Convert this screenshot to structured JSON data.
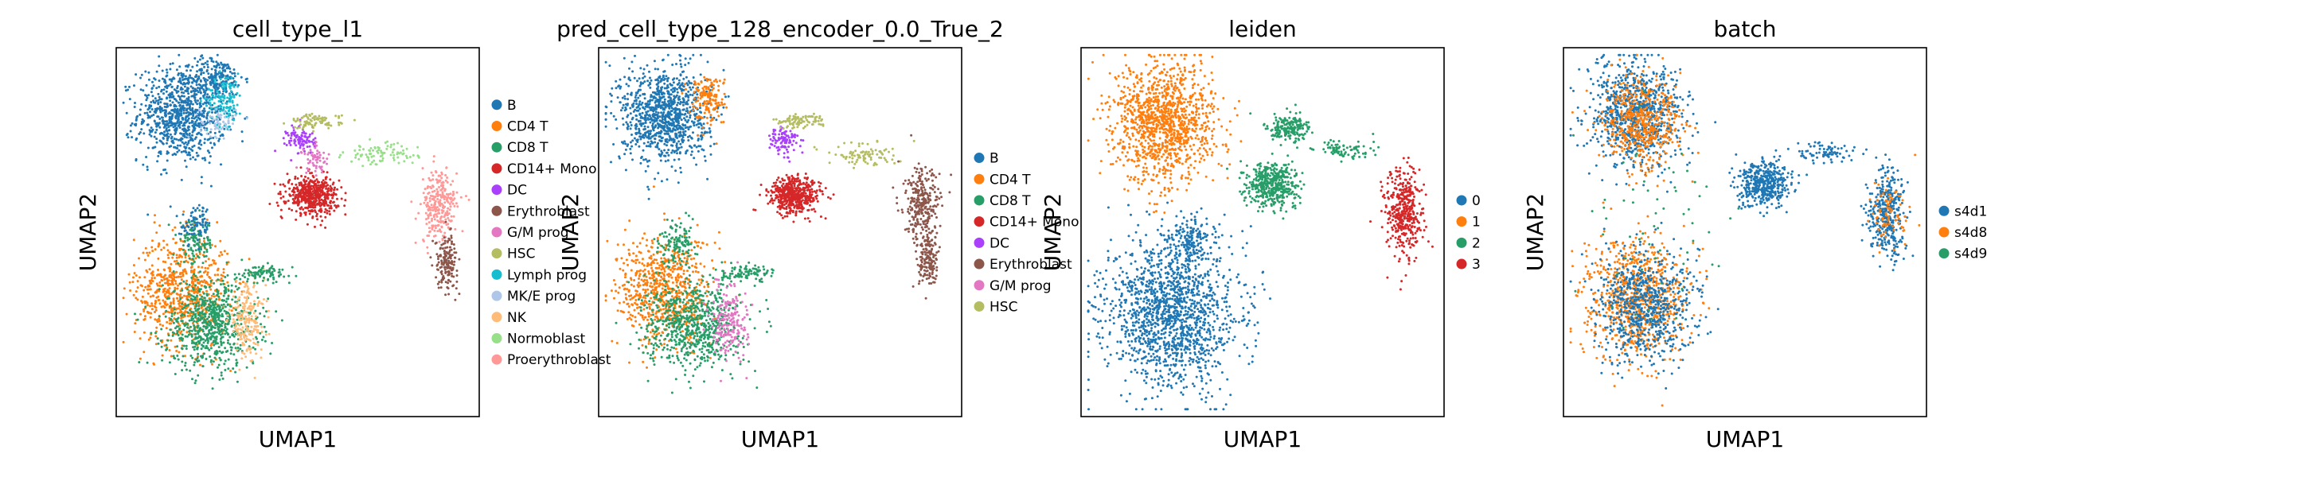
{
  "chart_data": [
    {
      "type": "scatter",
      "title": "cell_type_l1",
      "xlabel": "UMAP1",
      "ylabel": "UMAP2",
      "grid": false,
      "legend_position": "right",
      "series": [
        {
          "name": "B",
          "color": "#1f77b4"
        },
        {
          "name": "CD4 T",
          "color": "#ff7f0e"
        },
        {
          "name": "CD8 T",
          "color": "#279e68"
        },
        {
          "name": "CD14+ Mono",
          "color": "#d62728"
        },
        {
          "name": "DC",
          "color": "#aa40fc"
        },
        {
          "name": "Erythroblast",
          "color": "#8c564b"
        },
        {
          "name": "G/M prog",
          "color": "#e377c2"
        },
        {
          "name": "HSC",
          "color": "#b5bd61"
        },
        {
          "name": "Lymph prog",
          "color": "#17becf"
        },
        {
          "name": "MK/E prog",
          "color": "#aec7e8"
        },
        {
          "name": "NK",
          "color": "#ffbb78"
        },
        {
          "name": "Normoblast",
          "color": "#98df8a"
        },
        {
          "name": "Proerythroblast",
          "color": "#ff9896"
        }
      ],
      "clusters": [
        {
          "series": 0,
          "cx": 0.18,
          "cy": 0.82,
          "rx": 0.12,
          "ry": 0.13,
          "n": 900
        },
        {
          "series": 0,
          "cx": 0.28,
          "cy": 0.92,
          "rx": 0.07,
          "ry": 0.05,
          "n": 180
        },
        {
          "series": 8,
          "cx": 0.3,
          "cy": 0.86,
          "rx": 0.05,
          "ry": 0.07,
          "n": 130
        },
        {
          "series": 9,
          "cx": 0.28,
          "cy": 0.8,
          "rx": 0.05,
          "ry": 0.04,
          "n": 60
        },
        {
          "series": 1,
          "cx": 0.18,
          "cy": 0.34,
          "rx": 0.13,
          "ry": 0.15,
          "n": 700
        },
        {
          "series": 2,
          "cx": 0.26,
          "cy": 0.25,
          "rx": 0.13,
          "ry": 0.12,
          "n": 700
        },
        {
          "series": 10,
          "cx": 0.36,
          "cy": 0.26,
          "rx": 0.05,
          "ry": 0.1,
          "n": 200
        },
        {
          "series": 2,
          "cx": 0.22,
          "cy": 0.47,
          "rx": 0.05,
          "ry": 0.06,
          "n": 120
        },
        {
          "series": 0,
          "cx": 0.22,
          "cy": 0.52,
          "rx": 0.04,
          "ry": 0.05,
          "n": 80
        },
        {
          "series": 3,
          "cx": 0.54,
          "cy": 0.6,
          "rx": 0.07,
          "ry": 0.05,
          "n": 500
        },
        {
          "series": 4,
          "cx": 0.51,
          "cy": 0.75,
          "rx": 0.04,
          "ry": 0.04,
          "n": 100
        },
        {
          "series": 7,
          "cx": 0.55,
          "cy": 0.8,
          "rx": 0.07,
          "ry": 0.02,
          "n": 90
        },
        {
          "series": 6,
          "cx": 0.55,
          "cy": 0.7,
          "rx": 0.04,
          "ry": 0.04,
          "n": 60
        },
        {
          "series": 11,
          "cx": 0.73,
          "cy": 0.71,
          "rx": 0.1,
          "ry": 0.03,
          "n": 90
        },
        {
          "series": 12,
          "cx": 0.89,
          "cy": 0.57,
          "rx": 0.05,
          "ry": 0.1,
          "n": 280
        },
        {
          "series": 5,
          "cx": 0.91,
          "cy": 0.42,
          "rx": 0.03,
          "ry": 0.07,
          "n": 160
        },
        {
          "series": 2,
          "cx": 0.41,
          "cy": 0.39,
          "rx": 0.07,
          "ry": 0.02,
          "n": 90
        }
      ]
    },
    {
      "type": "scatter",
      "title": "pred_cell_type_128_encoder_0.0_True_2",
      "xlabel": "UMAP1",
      "ylabel": "UMAP2",
      "grid": false,
      "legend_position": "right",
      "series": [
        {
          "name": "B",
          "color": "#1f77b4"
        },
        {
          "name": "CD4 T",
          "color": "#ff7f0e"
        },
        {
          "name": "CD8 T",
          "color": "#279e68"
        },
        {
          "name": "CD14+ Mono",
          "color": "#d62728"
        },
        {
          "name": "DC",
          "color": "#aa40fc"
        },
        {
          "name": "Erythroblast",
          "color": "#8c564b"
        },
        {
          "name": "G/M prog",
          "color": "#e377c2"
        },
        {
          "name": "HSC",
          "color": "#b5bd61"
        }
      ],
      "clusters": [
        {
          "series": 0,
          "cx": 0.18,
          "cy": 0.82,
          "rx": 0.12,
          "ry": 0.13,
          "n": 1000
        },
        {
          "series": 1,
          "cx": 0.3,
          "cy": 0.86,
          "rx": 0.05,
          "ry": 0.07,
          "n": 150
        },
        {
          "series": 1,
          "cx": 0.18,
          "cy": 0.34,
          "rx": 0.13,
          "ry": 0.15,
          "n": 700
        },
        {
          "series": 2,
          "cx": 0.26,
          "cy": 0.25,
          "rx": 0.13,
          "ry": 0.12,
          "n": 700
        },
        {
          "series": 6,
          "cx": 0.36,
          "cy": 0.26,
          "rx": 0.05,
          "ry": 0.1,
          "n": 200
        },
        {
          "series": 2,
          "cx": 0.22,
          "cy": 0.47,
          "rx": 0.05,
          "ry": 0.06,
          "n": 120
        },
        {
          "series": 3,
          "cx": 0.54,
          "cy": 0.6,
          "rx": 0.07,
          "ry": 0.05,
          "n": 500
        },
        {
          "series": 4,
          "cx": 0.51,
          "cy": 0.75,
          "rx": 0.04,
          "ry": 0.04,
          "n": 100
        },
        {
          "series": 7,
          "cx": 0.55,
          "cy": 0.8,
          "rx": 0.07,
          "ry": 0.02,
          "n": 90
        },
        {
          "series": 7,
          "cx": 0.73,
          "cy": 0.71,
          "rx": 0.1,
          "ry": 0.03,
          "n": 90
        },
        {
          "series": 5,
          "cx": 0.89,
          "cy": 0.57,
          "rx": 0.05,
          "ry": 0.1,
          "n": 280
        },
        {
          "series": 5,
          "cx": 0.91,
          "cy": 0.42,
          "rx": 0.03,
          "ry": 0.07,
          "n": 160
        },
        {
          "series": 2,
          "cx": 0.41,
          "cy": 0.39,
          "rx": 0.07,
          "ry": 0.02,
          "n": 90
        }
      ]
    },
    {
      "type": "scatter",
      "title": "leiden",
      "xlabel": "UMAP1",
      "ylabel": "UMAP2",
      "grid": false,
      "legend_position": "right",
      "series": [
        {
          "name": "0",
          "color": "#1f77b4"
        },
        {
          "name": "1",
          "color": "#ff7f0e"
        },
        {
          "name": "2",
          "color": "#279e68"
        },
        {
          "name": "3",
          "color": "#d62728"
        }
      ],
      "clusters": [
        {
          "series": 1,
          "cx": 0.23,
          "cy": 0.8,
          "rx": 0.14,
          "ry": 0.16,
          "n": 1200
        },
        {
          "series": 0,
          "cx": 0.25,
          "cy": 0.28,
          "rx": 0.18,
          "ry": 0.2,
          "n": 1500
        },
        {
          "series": 0,
          "cx": 0.3,
          "cy": 0.48,
          "rx": 0.06,
          "ry": 0.06,
          "n": 150
        },
        {
          "series": 2,
          "cx": 0.53,
          "cy": 0.63,
          "rx": 0.07,
          "ry": 0.06,
          "n": 450
        },
        {
          "series": 2,
          "cx": 0.57,
          "cy": 0.78,
          "rx": 0.06,
          "ry": 0.04,
          "n": 200
        },
        {
          "series": 2,
          "cx": 0.72,
          "cy": 0.72,
          "rx": 0.08,
          "ry": 0.03,
          "n": 80
        },
        {
          "series": 3,
          "cx": 0.89,
          "cy": 0.55,
          "rx": 0.05,
          "ry": 0.12,
          "n": 420
        }
      ]
    },
    {
      "type": "scatter",
      "title": "batch",
      "xlabel": "UMAP1",
      "ylabel": "UMAP2",
      "grid": false,
      "legend_position": "right",
      "series": [
        {
          "name": "s4d1",
          "color": "#1f77b4"
        },
        {
          "name": "s4d8",
          "color": "#ff7f0e"
        },
        {
          "name": "s4d9",
          "color": "#279e68"
        }
      ],
      "clusters": [
        {
          "series": 0,
          "cx": 0.2,
          "cy": 0.82,
          "rx": 0.13,
          "ry": 0.14,
          "n": 900
        },
        {
          "series": 1,
          "cx": 0.22,
          "cy": 0.8,
          "rx": 0.11,
          "ry": 0.12,
          "n": 500
        },
        {
          "series": 1,
          "cx": 0.2,
          "cy": 0.32,
          "rx": 0.14,
          "ry": 0.16,
          "n": 800
        },
        {
          "series": 0,
          "cx": 0.23,
          "cy": 0.3,
          "rx": 0.14,
          "ry": 0.15,
          "n": 700
        },
        {
          "series": 0,
          "cx": 0.55,
          "cy": 0.63,
          "rx": 0.07,
          "ry": 0.06,
          "n": 450
        },
        {
          "series": 0,
          "cx": 0.72,
          "cy": 0.72,
          "rx": 0.09,
          "ry": 0.03,
          "n": 80
        },
        {
          "series": 0,
          "cx": 0.89,
          "cy": 0.55,
          "rx": 0.05,
          "ry": 0.12,
          "n": 380
        },
        {
          "series": 1,
          "cx": 0.89,
          "cy": 0.55,
          "rx": 0.05,
          "ry": 0.1,
          "n": 80
        },
        {
          "series": 2,
          "cx": 0.25,
          "cy": 0.5,
          "rx": 0.2,
          "ry": 0.3,
          "n": 60
        }
      ]
    }
  ]
}
